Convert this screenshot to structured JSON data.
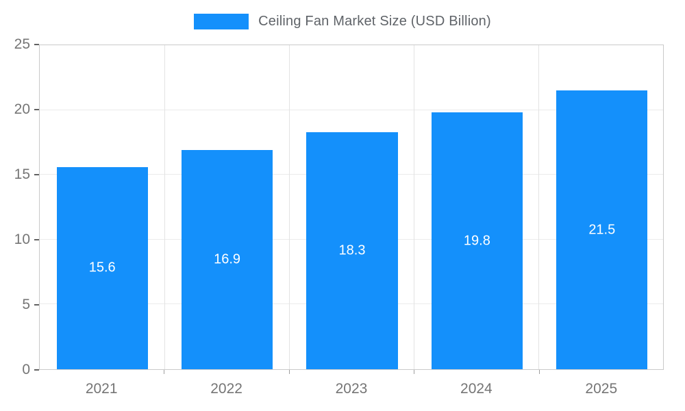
{
  "chart_data": {
    "type": "bar",
    "title": "Ceiling Fan Market Size (USD Billion)",
    "categories": [
      "2021",
      "2022",
      "2023",
      "2024",
      "2025"
    ],
    "values": [
      15.6,
      16.9,
      18.3,
      19.8,
      21.5
    ],
    "value_labels": [
      "15.6",
      "16.9",
      "18.3",
      "19.8",
      "21.5"
    ],
    "xlabel": "",
    "ylabel": "",
    "ylim": [
      0,
      25
    ],
    "yticks": [
      0,
      5,
      10,
      15,
      20,
      25
    ],
    "grid": true,
    "legend_position": "top",
    "bar_color": "#1490fb",
    "value_label_color": "#ffffff",
    "axis_label_color": "#757575",
    "title_color": "#5f6368"
  }
}
